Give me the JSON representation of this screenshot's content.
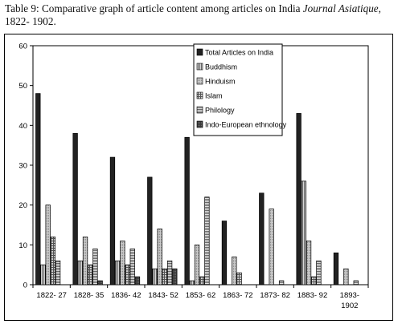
{
  "caption": {
    "prefix": "Table 9: Comparative graph of article content among articles on India ",
    "journal": "Journal Asiatique",
    "suffix": ",",
    "line2": "1822- 1902."
  },
  "chart_data": {
    "type": "bar",
    "title": "",
    "xlabel": "",
    "ylabel": "",
    "ylim": [
      0,
      60
    ],
    "yticks": [
      "0",
      "10",
      "20",
      "30",
      "40",
      "50",
      "60"
    ],
    "grid": false,
    "legend_position": "top-right",
    "categories": [
      [
        "1822- 27"
      ],
      [
        "1828- 35"
      ],
      [
        "1836- 42"
      ],
      [
        "1843- 52"
      ],
      [
        "1853- 62"
      ],
      [
        "1863- 72"
      ],
      [
        "1873- 82"
      ],
      [
        "1883- 92"
      ],
      [
        "1893-",
        "1902"
      ]
    ],
    "series": [
      {
        "name": "Total Articles on India",
        "color": "#222222",
        "pattern": "solid",
        "values": [
          48,
          38,
          32,
          27,
          37,
          16,
          23,
          43,
          8
        ]
      },
      {
        "name": "Buddhism",
        "color": "#9a9a9a",
        "pattern": "vlines",
        "values": [
          5,
          6,
          6,
          4,
          1,
          0,
          0,
          26,
          0
        ]
      },
      {
        "name": "Hinduism",
        "color": "#a6a6a6",
        "pattern": "light",
        "values": [
          20,
          12,
          11,
          14,
          10,
          7,
          19,
          11,
          4
        ]
      },
      {
        "name": "Islam",
        "color": "#8a8a8a",
        "pattern": "grid",
        "values": [
          12,
          5,
          5,
          4,
          2,
          3,
          0,
          2,
          0
        ]
      },
      {
        "name": "Philology",
        "color": "#9e9e9e",
        "pattern": "hlines",
        "values": [
          6,
          9,
          9,
          6,
          22,
          0,
          1,
          6,
          1
        ]
      },
      {
        "name": "Indo-European ethnology",
        "color": "#4a4a4a",
        "pattern": "dark",
        "values": [
          0,
          1,
          2,
          4,
          0,
          0,
          0,
          0,
          0
        ]
      }
    ]
  }
}
